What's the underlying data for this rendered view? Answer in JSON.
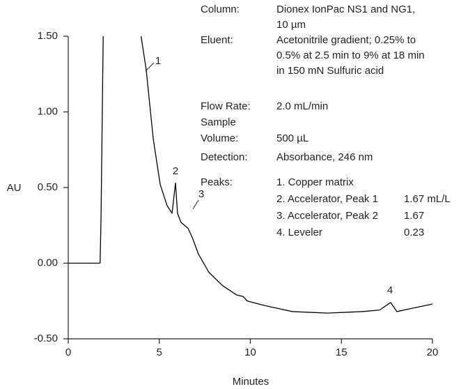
{
  "chart_data": {
    "type": "line",
    "x_label": "Minutes",
    "y_label": "AU",
    "xlim": [
      0,
      20
    ],
    "ylim": [
      -0.5,
      1.5
    ],
    "xticks": [
      0,
      5,
      10,
      15,
      20
    ],
    "yticks": [
      {
        "value": -0.5,
        "label": "-0.50"
      },
      {
        "value": 0,
        "label": "0.00"
      },
      {
        "value": 0.5,
        "label": "0.50"
      },
      {
        "value": 1,
        "label": "1.00"
      },
      {
        "value": 1.5,
        "label": "1.50"
      }
    ],
    "x": [
      0,
      1.75,
      1.8,
      1.92,
      3.5,
      4.0,
      4.28,
      4.67,
      5.05,
      5.43,
      5.7,
      5.89,
      6.0,
      6.19,
      6.58,
      6.81,
      7.15,
      7.72,
      8.49,
      9.25,
      9.6,
      9.83,
      10.78,
      12.31,
      14.23,
      16.14,
      17.1,
      17.7,
      18.05,
      18.81,
      20
    ],
    "series": [
      {
        "color": "#000000",
        "values": [
          0,
          0,
          0.3,
          1.5,
          null,
          1.5,
          1.28,
          0.82,
          0.52,
          0.38,
          0.33,
          0.53,
          0.33,
          0.27,
          0.23,
          0.17,
          0.06,
          -0.06,
          -0.15,
          -0.21,
          -0.22,
          -0.25,
          -0.28,
          -0.32,
          -0.33,
          -0.32,
          -0.31,
          -0.26,
          -0.32,
          -0.3,
          -0.27
        ]
      }
    ],
    "peak_labels": [
      "1",
      "2",
      "3",
      "4"
    ],
    "method": [
      {
        "label_lines": [
          "Column:"
        ],
        "value_lines": [
          "Dionex IonPac NS1 and NG1,",
          "10 µm"
        ]
      },
      {
        "label_lines": [
          "Eluent:"
        ],
        "value_lines": [
          "Acetonitrile gradient; 0.25% to",
          "0.5% at 2.5 min to 9% at 18 min",
          "in 150 mN Sulfuric acid"
        ]
      },
      {
        "label_lines": [
          "Flow Rate:"
        ],
        "value_lines": [
          "2.0 mL/min"
        ]
      },
      {
        "label_lines": [
          "Sample",
          "Volume:"
        ],
        "value_lines": [
          "500 µL"
        ]
      },
      {
        "label_lines": [
          "Detection:"
        ],
        "value_lines": [
          "Absorbance, 246 nm"
        ]
      }
    ],
    "peaks_label": "Peaks:",
    "peaks": [
      {
        "name": "1. Copper matrix"
      },
      {
        "name": "2. Accelerator, Peak 1",
        "amount": "1.67 mL/L"
      },
      {
        "name": "3. Accelerator, Peak 2",
        "amount": "1.67"
      },
      {
        "name": "4. Leveler",
        "amount": "0.23"
      }
    ]
  }
}
